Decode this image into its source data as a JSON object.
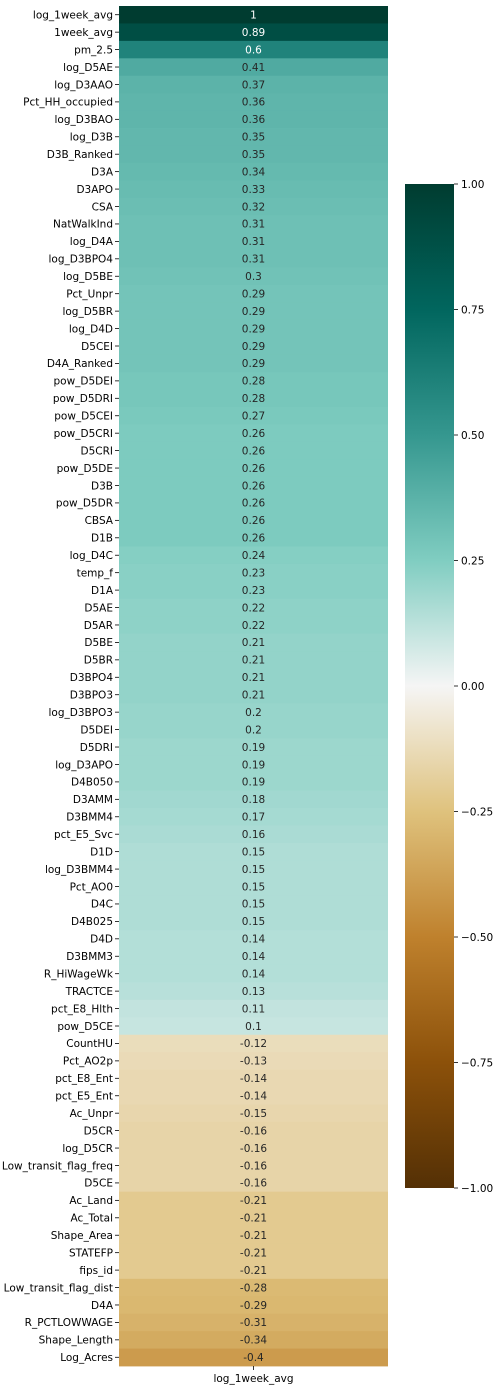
{
  "chart_data": {
    "type": "heatmap",
    "x_categories": [
      "log_1week_avg"
    ],
    "rows": [
      {
        "label": "log_1week_avg",
        "value": 1,
        "text": "1"
      },
      {
        "label": "1week_avg",
        "value": 0.89,
        "text": "0.89"
      },
      {
        "label": "pm_2.5",
        "value": 0.6,
        "text": "0.6"
      },
      {
        "label": "log_D5AE",
        "value": 0.41,
        "text": "0.41"
      },
      {
        "label": "log_D3AAO",
        "value": 0.37,
        "text": "0.37"
      },
      {
        "label": "Pct_HH_occupied",
        "value": 0.36,
        "text": "0.36"
      },
      {
        "label": "log_D3BAO",
        "value": 0.36,
        "text": "0.36"
      },
      {
        "label": "log_D3B",
        "value": 0.35,
        "text": "0.35"
      },
      {
        "label": "D3B_Ranked",
        "value": 0.35,
        "text": "0.35"
      },
      {
        "label": "D3A",
        "value": 0.34,
        "text": "0.34"
      },
      {
        "label": "D3APO",
        "value": 0.33,
        "text": "0.33"
      },
      {
        "label": "CSA",
        "value": 0.32,
        "text": "0.32"
      },
      {
        "label": "NatWalkInd",
        "value": 0.31,
        "text": "0.31"
      },
      {
        "label": "log_D4A",
        "value": 0.31,
        "text": "0.31"
      },
      {
        "label": "log_D3BPO4",
        "value": 0.31,
        "text": "0.31"
      },
      {
        "label": "log_D5BE",
        "value": 0.3,
        "text": "0.3"
      },
      {
        "label": "Pct_Unpr",
        "value": 0.29,
        "text": "0.29"
      },
      {
        "label": "log_D5BR",
        "value": 0.29,
        "text": "0.29"
      },
      {
        "label": "log_D4D",
        "value": 0.29,
        "text": "0.29"
      },
      {
        "label": "D5CEI",
        "value": 0.29,
        "text": "0.29"
      },
      {
        "label": "D4A_Ranked",
        "value": 0.29,
        "text": "0.29"
      },
      {
        "label": "pow_D5DEI",
        "value": 0.28,
        "text": "0.28"
      },
      {
        "label": "pow_D5DRI",
        "value": 0.28,
        "text": "0.28"
      },
      {
        "label": "pow_D5CEI",
        "value": 0.27,
        "text": "0.27"
      },
      {
        "label": "pow_D5CRI",
        "value": 0.26,
        "text": "0.26"
      },
      {
        "label": "D5CRI",
        "value": 0.26,
        "text": "0.26"
      },
      {
        "label": "pow_D5DE",
        "value": 0.26,
        "text": "0.26"
      },
      {
        "label": "D3B",
        "value": 0.26,
        "text": "0.26"
      },
      {
        "label": "pow_D5DR",
        "value": 0.26,
        "text": "0.26"
      },
      {
        "label": "CBSA",
        "value": 0.26,
        "text": "0.26"
      },
      {
        "label": "D1B",
        "value": 0.26,
        "text": "0.26"
      },
      {
        "label": "log_D4C",
        "value": 0.24,
        "text": "0.24"
      },
      {
        "label": "temp_f",
        "value": 0.23,
        "text": "0.23"
      },
      {
        "label": "D1A",
        "value": 0.23,
        "text": "0.23"
      },
      {
        "label": "D5AE",
        "value": 0.22,
        "text": "0.22"
      },
      {
        "label": "D5AR",
        "value": 0.22,
        "text": "0.22"
      },
      {
        "label": "D5BE",
        "value": 0.21,
        "text": "0.21"
      },
      {
        "label": "D5BR",
        "value": 0.21,
        "text": "0.21"
      },
      {
        "label": "D3BPO4",
        "value": 0.21,
        "text": "0.21"
      },
      {
        "label": "D3BPO3",
        "value": 0.21,
        "text": "0.21"
      },
      {
        "label": "log_D3BPO3",
        "value": 0.2,
        "text": "0.2"
      },
      {
        "label": "D5DEI",
        "value": 0.2,
        "text": "0.2"
      },
      {
        "label": "D5DRI",
        "value": 0.19,
        "text": "0.19"
      },
      {
        "label": "log_D3APO",
        "value": 0.19,
        "text": "0.19"
      },
      {
        "label": "D4B050",
        "value": 0.19,
        "text": "0.19"
      },
      {
        "label": "D3AMM",
        "value": 0.18,
        "text": "0.18"
      },
      {
        "label": "D3BMM4",
        "value": 0.17,
        "text": "0.17"
      },
      {
        "label": "pct_E5_Svc",
        "value": 0.16,
        "text": "0.16"
      },
      {
        "label": "D1D",
        "value": 0.15,
        "text": "0.15"
      },
      {
        "label": "log_D3BMM4",
        "value": 0.15,
        "text": "0.15"
      },
      {
        "label": "Pct_AO0",
        "value": 0.15,
        "text": "0.15"
      },
      {
        "label": "D4C",
        "value": 0.15,
        "text": "0.15"
      },
      {
        "label": "D4B025",
        "value": 0.15,
        "text": "0.15"
      },
      {
        "label": "D4D",
        "value": 0.14,
        "text": "0.14"
      },
      {
        "label": "D3BMM3",
        "value": 0.14,
        "text": "0.14"
      },
      {
        "label": "R_HiWageWk",
        "value": 0.14,
        "text": "0.14"
      },
      {
        "label": "TRACTCE",
        "value": 0.13,
        "text": "0.13"
      },
      {
        "label": "pct_E8_Hlth",
        "value": 0.11,
        "text": "0.11"
      },
      {
        "label": "pow_D5CE",
        "value": 0.1,
        "text": "0.1"
      },
      {
        "label": "CountHU",
        "value": -0.12,
        "text": "-0.12"
      },
      {
        "label": "Pct_AO2p",
        "value": -0.13,
        "text": "-0.13"
      },
      {
        "label": "pct_E8_Ent",
        "value": -0.14,
        "text": "-0.14"
      },
      {
        "label": "pct_E5_Ent",
        "value": -0.14,
        "text": "-0.14"
      },
      {
        "label": "Ac_Unpr",
        "value": -0.15,
        "text": "-0.15"
      },
      {
        "label": "D5CR",
        "value": -0.16,
        "text": "-0.16"
      },
      {
        "label": "log_D5CR",
        "value": -0.16,
        "text": "-0.16"
      },
      {
        "label": "Low_transit_flag_freq",
        "value": -0.16,
        "text": "-0.16"
      },
      {
        "label": "D5CE",
        "value": -0.16,
        "text": "-0.16"
      },
      {
        "label": "Ac_Land",
        "value": -0.21,
        "text": "-0.21"
      },
      {
        "label": "Ac_Total",
        "value": -0.21,
        "text": "-0.21"
      },
      {
        "label": "Shape_Area",
        "value": -0.21,
        "text": "-0.21"
      },
      {
        "label": "STATEFP",
        "value": -0.21,
        "text": "-0.21"
      },
      {
        "label": "fips_id",
        "value": -0.21,
        "text": "-0.21"
      },
      {
        "label": "Low_transit_flag_dist",
        "value": -0.28,
        "text": "-0.28"
      },
      {
        "label": "D4A",
        "value": -0.29,
        "text": "-0.29"
      },
      {
        "label": "R_PCTLOWWAGE",
        "value": -0.31,
        "text": "-0.31"
      },
      {
        "label": "Shape_Length",
        "value": -0.34,
        "text": "-0.34"
      },
      {
        "label": "Log_Acres",
        "value": -0.4,
        "text": "-0.4"
      }
    ],
    "colorbar": {
      "range": [
        -1,
        1
      ],
      "ticks": [
        {
          "value": 1,
          "label": "1.00"
        },
        {
          "value": 0.75,
          "label": "0.75"
        },
        {
          "value": 0.5,
          "label": "0.50"
        },
        {
          "value": 0.25,
          "label": "0.25"
        },
        {
          "value": 0,
          "label": "0.00"
        },
        {
          "value": -0.25,
          "label": "−0.25"
        },
        {
          "value": -0.5,
          "label": "−0.50"
        },
        {
          "value": -0.75,
          "label": "−0.75"
        },
        {
          "value": -1,
          "label": "−1.00"
        }
      ]
    },
    "colormap": "BrBG",
    "colormap_stops": [
      [
        -1.0,
        "#543005"
      ],
      [
        -0.75,
        "#8c510a"
      ],
      [
        -0.5,
        "#bf812d"
      ],
      [
        -0.25,
        "#dfc27d"
      ],
      [
        0.0,
        "#f5f5f5"
      ],
      [
        0.25,
        "#80cdc1"
      ],
      [
        0.5,
        "#35978f"
      ],
      [
        0.75,
        "#01665e"
      ],
      [
        1.0,
        "#003c30"
      ]
    ]
  }
}
